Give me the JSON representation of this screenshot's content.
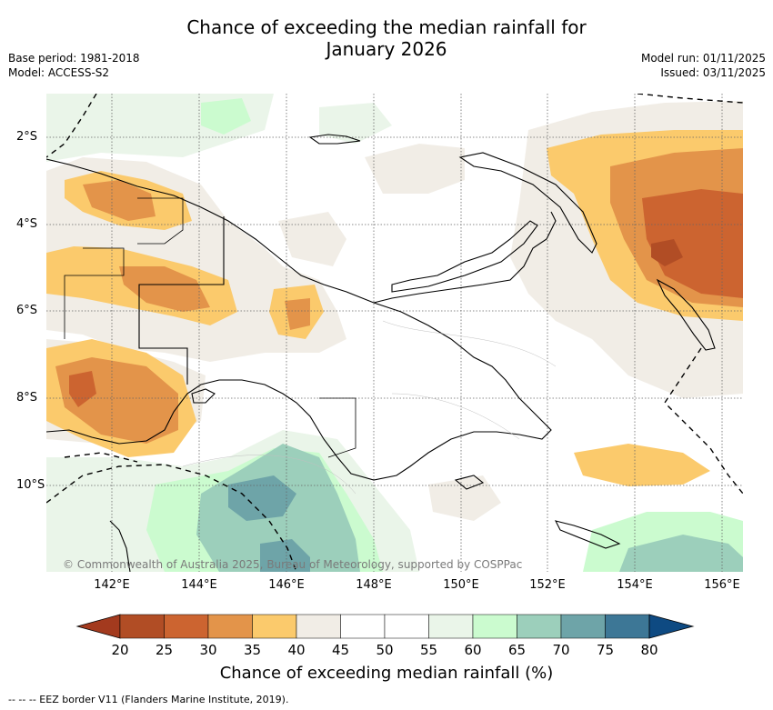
{
  "title": {
    "line1": "Chance of exceeding the median rainfall for",
    "line2": "January 2026"
  },
  "meta": {
    "base_period": "Base period: 1981-2018",
    "model": "Model: ACCESS-S2",
    "model_run": "Model run: 01/11/2025",
    "issued": "Issued: 03/11/2025"
  },
  "map": {
    "copyright": "© Commonwealth of Australia 2025, Bureau of Meteorology, supported by COSPPac",
    "x_ticks": [
      "142°E",
      "144°E",
      "146°E",
      "148°E",
      "150°E",
      "152°E",
      "154°E",
      "156°E"
    ],
    "y_ticks": [
      "2°S",
      "4°S",
      "6°S",
      "8°S",
      "10°S"
    ],
    "land_color": "#000000",
    "eez_color": "#000000"
  },
  "colorbar": {
    "ticks": [
      "20",
      "25",
      "30",
      "35",
      "40",
      "45",
      "50",
      "55",
      "60",
      "65",
      "70",
      "75",
      "80"
    ],
    "colors": [
      "#a33a1e",
      "#b14d25",
      "#cc6430",
      "#e3944a",
      "#fbca6c",
      "#f1ede6",
      "#ffffff",
      "#ffffff",
      "#eaf5e9",
      "#cbfbcf",
      "#9ccfbb",
      "#6ea4a8",
      "#3d7796",
      "#0e4a82"
    ],
    "label": "Chance of exceeding median rainfall (%)"
  },
  "footer": "--  --  -- EEZ border V11 (Flanders Marine Institute, 2019)."
}
